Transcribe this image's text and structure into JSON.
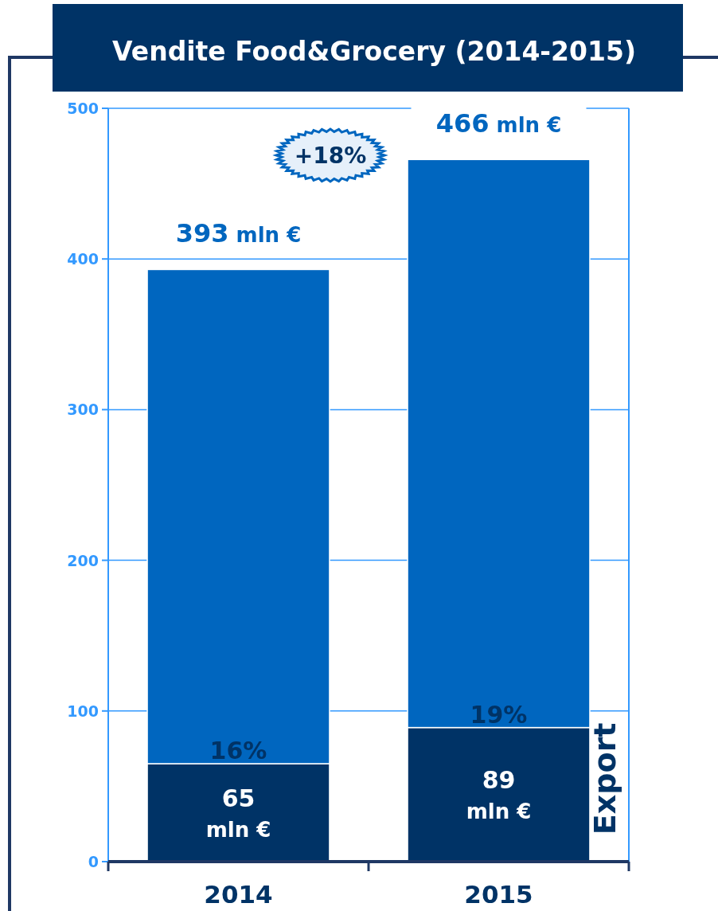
{
  "chart_data": {
    "type": "bar",
    "title": "Vendite Food&Grocery (2014-2015)",
    "stacked": true,
    "categories": [
      "2014",
      "2015"
    ],
    "series": [
      {
        "name": "Export",
        "color": "#003366",
        "values": [
          65,
          89
        ],
        "value_labels": [
          "65 mln €",
          "89 mln €"
        ]
      },
      {
        "color": "#0066bf",
        "values": [
          328,
          377
        ]
      }
    ],
    "totals": [
      "393 mln €",
      "466 mln €"
    ],
    "annotations": [
      {
        "text": "16%",
        "x": "2014",
        "y": 65
      },
      {
        "text": "19%",
        "x": "2015",
        "y": 89
      },
      "+18%"
    ],
    "ylim": [
      0,
      500
    ],
    "yticks": [
      0,
      100,
      200,
      300,
      400,
      500
    ],
    "grid": "y"
  }
}
